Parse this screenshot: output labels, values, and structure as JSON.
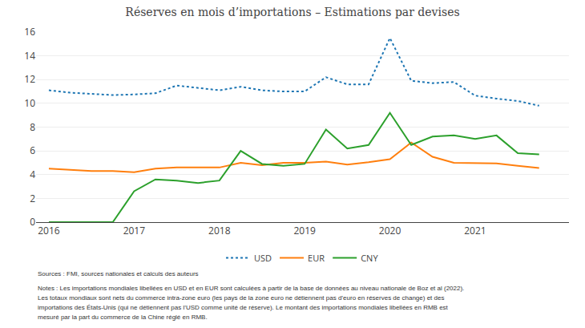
{
  "chart_data": {
    "type": "line",
    "title": "Réserves en mois d’importations – Estimations par devises",
    "annotations": [
      "Sources : FMI, sources nationales et calculs des auteurs",
      "Notes : Les importations mondiales libellées en USD et en EUR sont calculées à partir de la base de données au niveau nationale de Boz et al (2022).",
      "Les totaux mondiaux sont nets du commerce intra-zone euro (les pays de la zone euro ne détiennent pas d’euro en réserves de change) et des",
      "importations des États-Unis (qui ne détiennent pas l’USD comme unité de réserve). Le montant des importations mondiales libellées en RMB est",
      "mesuré par la part du commerce de la Chine réglé en RMB."
    ],
    "x": [
      2016.0,
      2016.25,
      2016.5,
      2016.75,
      2017.0,
      2017.25,
      2017.5,
      2017.75,
      2018.0,
      2018.25,
      2018.5,
      2018.75,
      2019.0,
      2019.25,
      2019.5,
      2019.75,
      2020.0,
      2020.25,
      2020.5,
      2020.75,
      2021.0,
      2021.25,
      2021.5,
      2021.75
    ],
    "series": [
      {
        "name": "USD",
        "line_style": "dotted",
        "values": [
          11.1,
          10.9,
          10.8,
          10.7,
          10.75,
          10.85,
          11.5,
          11.3,
          11.1,
          11.4,
          11.1,
          11.0,
          11.0,
          12.2,
          11.6,
          11.6,
          15.5,
          11.9,
          11.7,
          11.8,
          10.65,
          10.4,
          10.2,
          9.8
        ]
      },
      {
        "name": "EUR",
        "line_style": "solid",
        "values": [
          4.5,
          4.4,
          4.3,
          4.3,
          4.2,
          4.5,
          4.6,
          4.6,
          4.6,
          5.0,
          4.8,
          5.0,
          5.0,
          5.1,
          4.85,
          5.05,
          5.3,
          6.7,
          5.5,
          5.0,
          4.95,
          4.95,
          4.75,
          4.55
        ]
      },
      {
        "name": "CNY",
        "line_style": "solid",
        "values": [
          0.0,
          0.0,
          0.0,
          0.0,
          2.6,
          3.6,
          3.5,
          3.3,
          3.5,
          6.0,
          4.9,
          4.75,
          4.9,
          7.8,
          6.2,
          6.5,
          9.2,
          6.5,
          7.2,
          7.3,
          7.0,
          7.3,
          5.8,
          5.7
        ]
      }
    ],
    "xlim": [
      2015.85,
      2022.1
    ],
    "xticks": [
      2016,
      2017,
      2018,
      2019,
      2020,
      2021
    ],
    "ylim": [
      0,
      16
    ],
    "yticks": [
      0,
      2,
      4,
      6,
      8,
      10,
      12,
      14,
      16
    ],
    "grid": true,
    "legend": "bottom"
  }
}
